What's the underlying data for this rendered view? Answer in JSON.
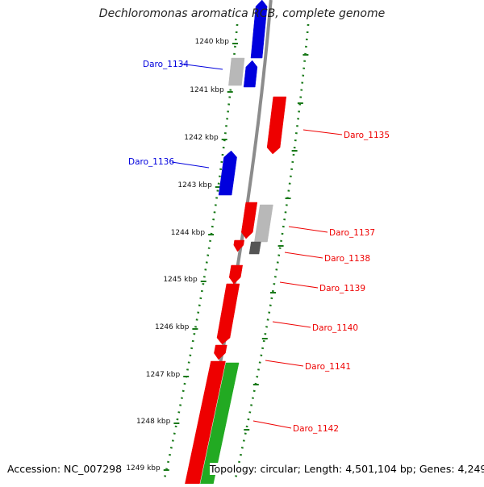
{
  "header": {
    "title": "Dechloromonas aromatica RCB, complete genome"
  },
  "footer": {
    "accession": "Accession: NC_007298",
    "topology": "Topology: circular; Length: 4,501,104 bp; Genes: 4,249"
  },
  "colors": {
    "forward_gene": "#ee0000",
    "reverse_gene": "#0000dd",
    "rna_gene": "#22aa22",
    "pseudo_gene": "#b8b8b8",
    "dark_feature": "#555555",
    "backbone": "#8c8c8c",
    "scale_ticks": "#1a7a1a"
  },
  "scale_marks": [
    {
      "label": "1240 kbp"
    },
    {
      "label": "1241 kbp"
    },
    {
      "label": "1242 kbp"
    },
    {
      "label": "1243 kbp"
    },
    {
      "label": "1244 kbp"
    },
    {
      "label": "1245 kbp"
    },
    {
      "label": "1246 kbp"
    },
    {
      "label": "1247 kbp"
    },
    {
      "label": "1248 kbp"
    },
    {
      "label": "1249 kbp"
    }
  ],
  "gene_labels": [
    {
      "id": "Daro_1134",
      "strand": "reverse"
    },
    {
      "id": "Daro_1135",
      "strand": "forward"
    },
    {
      "id": "Daro_1136",
      "strand": "reverse"
    },
    {
      "id": "Daro_1137",
      "strand": "forward"
    },
    {
      "id": "Daro_1138",
      "strand": "forward"
    },
    {
      "id": "Daro_1139",
      "strand": "forward"
    },
    {
      "id": "Daro_1140",
      "strand": "forward"
    },
    {
      "id": "Daro_1141",
      "strand": "forward"
    },
    {
      "id": "Daro_1142",
      "strand": "forward"
    }
  ]
}
